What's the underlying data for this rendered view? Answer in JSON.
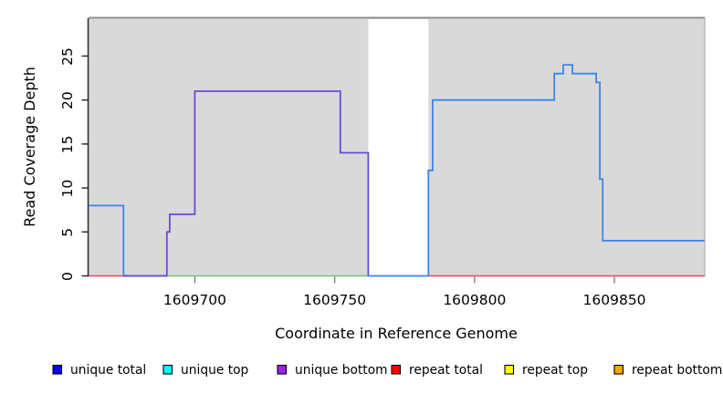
{
  "chart_data": {
    "type": "line",
    "subtype": "step-coverage-plot",
    "title": "",
    "xlabel": "Coordinate in Reference Genome",
    "ylabel": "Read Coverage Depth",
    "xlim": [
      1609662,
      1609882.3
    ],
    "ylim": [
      0,
      29.3
    ],
    "x_ticks": [
      {
        "value": 1609700,
        "label": "1609700"
      },
      {
        "value": 1609750,
        "label": "1609750"
      },
      {
        "value": 1609800,
        "label": "1609800"
      },
      {
        "value": 1609850,
        "label": "1609850"
      }
    ],
    "y_ticks": [
      {
        "value": 0,
        "label": "0"
      },
      {
        "value": 5,
        "label": "5"
      },
      {
        "value": 10,
        "label": "10"
      },
      {
        "value": 15,
        "label": "15"
      },
      {
        "value": 20,
        "label": "20"
      },
      {
        "value": 25,
        "label": "25"
      }
    ],
    "plot_bg": "#d9d9d9",
    "plot_border_color": "#a3a3a3",
    "top_edge_color": "#8c8c8c",
    "coverage_gap": {
      "x0": 1609762,
      "x1": 1609783.5,
      "color": "#ffffff"
    },
    "series": [
      {
        "name": "repeat total",
        "color": "#e6495c",
        "width": 1.4,
        "segments": [
          [
            [
              1609662,
              0
            ],
            [
              1609674.5,
              0
            ]
          ],
          [
            [
              1609783.5,
              0
            ],
            [
              1609882.3,
              0
            ]
          ]
        ]
      },
      {
        "name": "baseline-green",
        "color": "#7cc47c",
        "width": 1.4,
        "segments": [
          [
            [
              1609690,
              0
            ],
            [
              1609762,
              0
            ]
          ]
        ]
      },
      {
        "name": "unique total",
        "color": "#3e84e8",
        "width": 1.8,
        "segments": [
          [
            [
              1609662,
              8
            ],
            [
              1609674.5,
              8
            ],
            [
              1609674.5,
              0
            ],
            [
              1609690,
              0
            ]
          ],
          [
            [
              1609762,
              0
            ],
            [
              1609783.5,
              0
            ],
            [
              1609783.5,
              12
            ],
            [
              1609785,
              12
            ],
            [
              1609785,
              20
            ],
            [
              1609828.5,
              20
            ],
            [
              1609828.5,
              23
            ],
            [
              1609831.7,
              23
            ],
            [
              1609831.7,
              24
            ],
            [
              1609835,
              24
            ],
            [
              1609835,
              23
            ],
            [
              1609843.5,
              23
            ],
            [
              1609843.5,
              22
            ],
            [
              1609844.8,
              22
            ],
            [
              1609844.8,
              11
            ],
            [
              1609845.8,
              11
            ],
            [
              1609845.8,
              4
            ],
            [
              1609882.3,
              4
            ]
          ]
        ]
      },
      {
        "name": "unique bottom",
        "color": "#6a49d8",
        "width": 1.8,
        "segments": [
          [
            [
              1609674.5,
              0
            ],
            [
              1609690,
              0
            ],
            [
              1609690,
              5
            ],
            [
              1609691,
              5
            ],
            [
              1609691,
              7
            ],
            [
              1609700,
              7
            ],
            [
              1609700,
              21
            ],
            [
              1609752,
              21
            ],
            [
              1609752,
              14
            ],
            [
              1609762,
              14
            ],
            [
              1609762,
              0
            ]
          ]
        ]
      }
    ],
    "legend": [
      {
        "label": "unique total",
        "color": "#0000ff"
      },
      {
        "label": "unique top",
        "color": "#00ffff"
      },
      {
        "label": "unique bottom",
        "color": "#a020f0"
      },
      {
        "label": "repeat total",
        "color": "#ff0000"
      },
      {
        "label": "repeat top",
        "color": "#ffff00"
      },
      {
        "label": "repeat bottom",
        "color": "#ffa500"
      }
    ],
    "legend_position": "bottom",
    "grid": false
  }
}
